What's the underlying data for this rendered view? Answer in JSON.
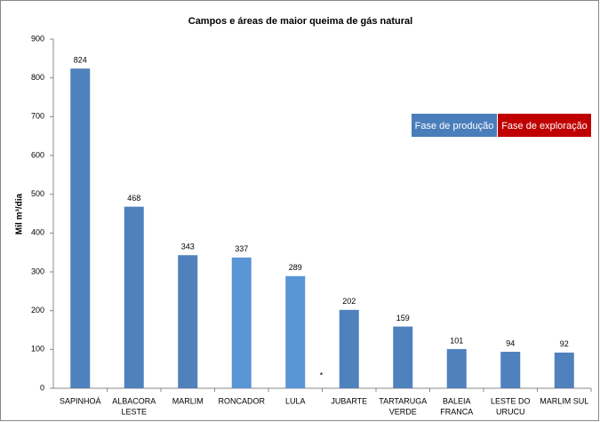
{
  "chart_data": {
    "type": "bar",
    "title": "Campos e áreas de maior queima de gás natural",
    "y_label": "Mil m³/dia",
    "categories": [
      [
        "SAPINHOÁ"
      ],
      [
        "ALBACORA",
        "LESTE"
      ],
      [
        "MARLIM"
      ],
      [
        "RONCADOR"
      ],
      [
        "LULA"
      ],
      [
        "JUBARTE"
      ],
      [
        "TARTARUGA",
        "VERDE"
      ],
      [
        "BALEIA",
        "FRANCA"
      ],
      [
        "LESTE DO",
        "URUCU"
      ],
      [
        "MARLIM SUL"
      ]
    ],
    "values": [
      824,
      468,
      343,
      337,
      289,
      202,
      159,
      101,
      94,
      92
    ],
    "colors": [
      "#4f81bd",
      "#4f81bd",
      "#4f81bd",
      "#5a95d5",
      "#5a95d5",
      "#4f81bd",
      "#4f81bd",
      "#4f81bd",
      "#4f81bd",
      "#4f81bd"
    ],
    "ylim": [
      0,
      900
    ],
    "yticks": [
      0,
      100,
      200,
      300,
      400,
      500,
      600,
      700,
      800,
      900
    ],
    "annotation": "*",
    "legend": [
      {
        "label": "Fase de produção",
        "color": "#4a7ebb"
      },
      {
        "label": "Fase de exploração",
        "color": "#c00000"
      }
    ]
  }
}
